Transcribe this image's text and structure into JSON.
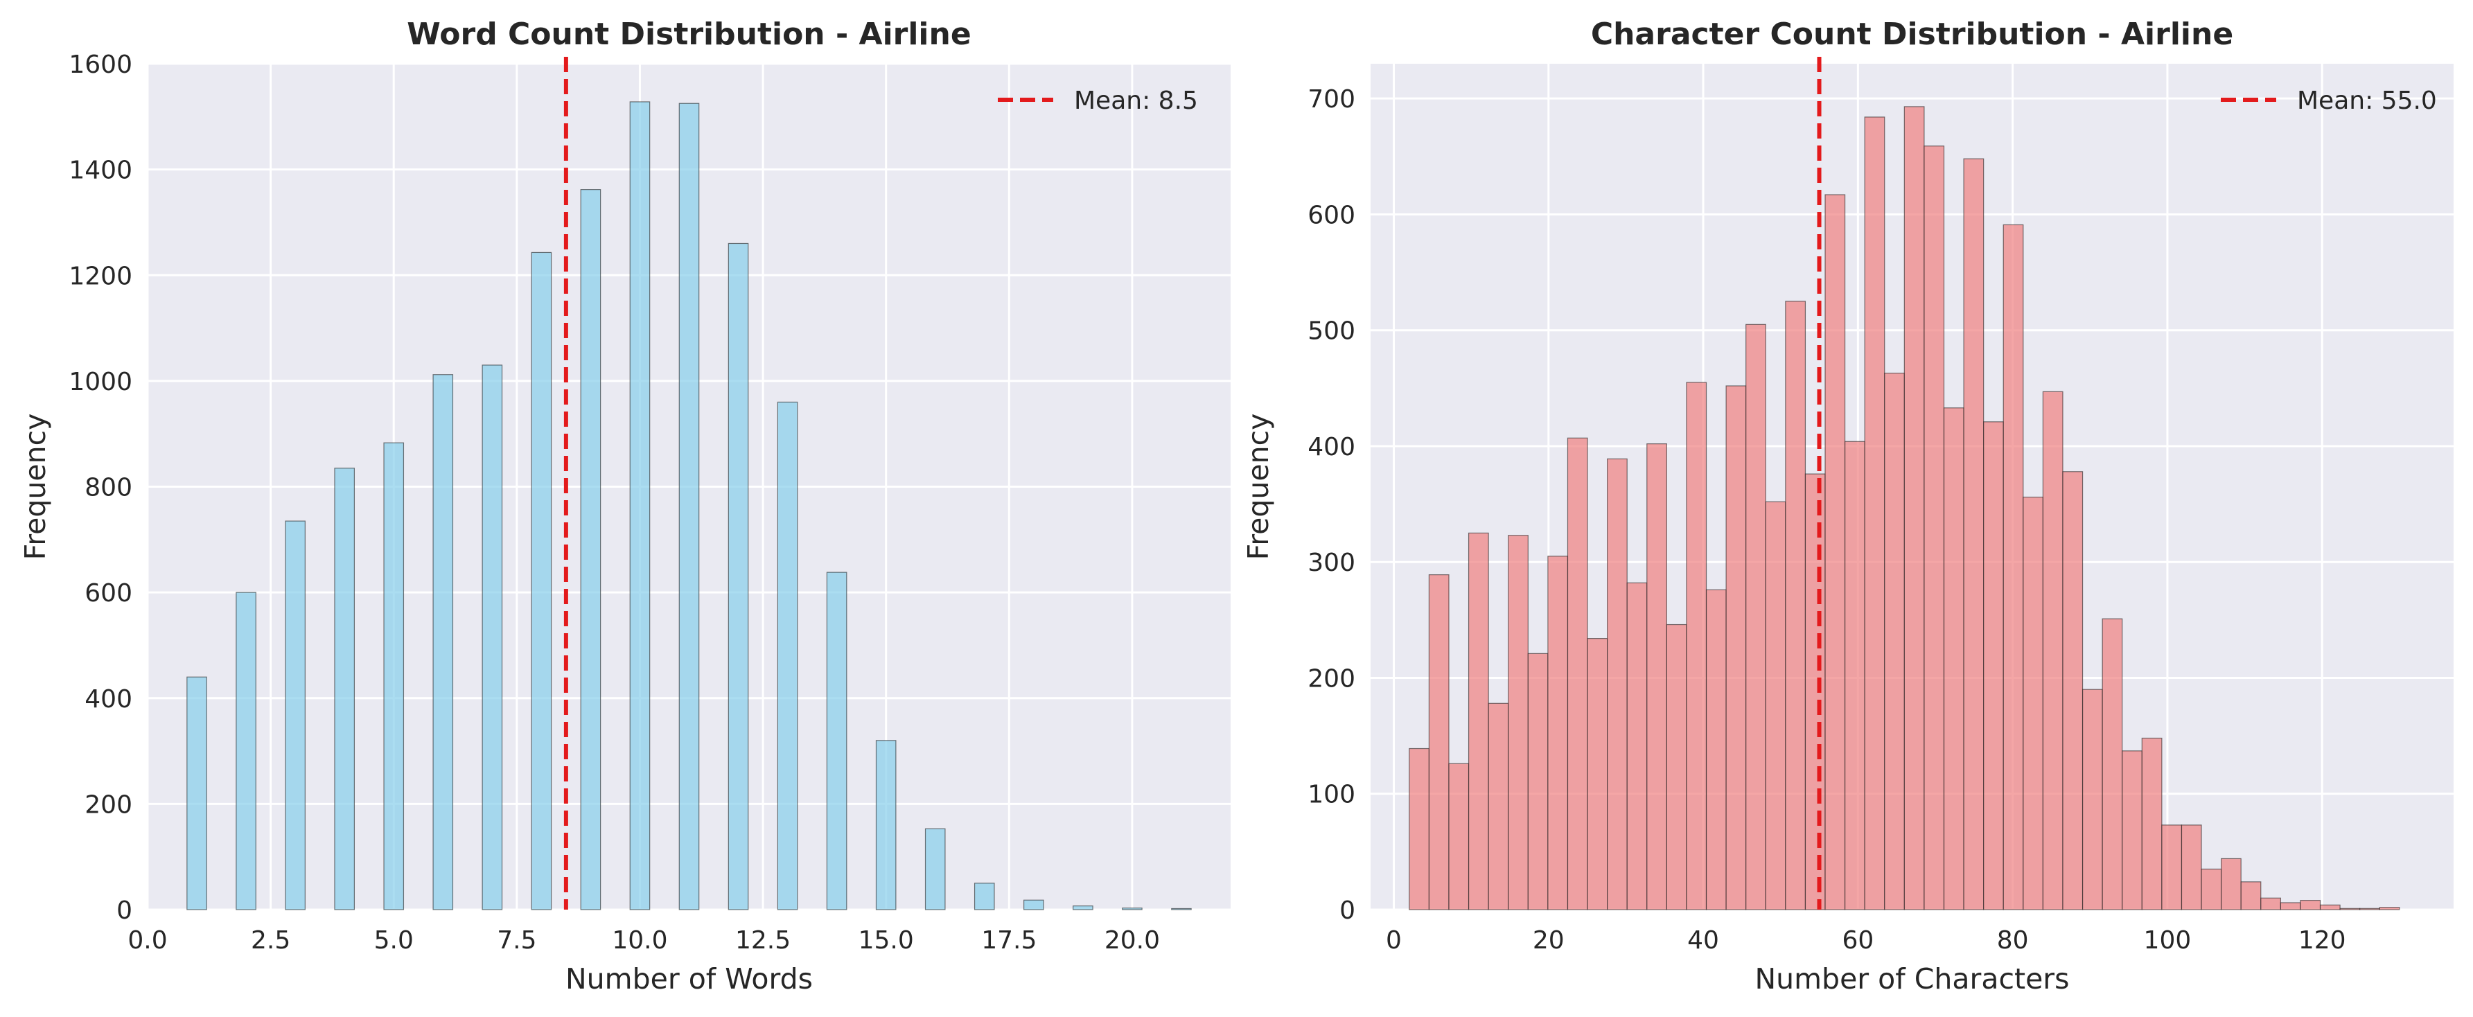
{
  "chart_data": [
    {
      "type": "bar",
      "title": "Word Count Distribution - Airline",
      "xlabel": "Number of Words",
      "ylabel": "Frequency",
      "xlim": [
        0,
        22
      ],
      "ylim": [
        0,
        1600
      ],
      "bar_color": "#87CEEB",
      "edge_color": "#1f1f1f",
      "bin_width": 0.4,
      "xticks": [
        0,
        2.5,
        5,
        7.5,
        10,
        12.5,
        15,
        17.5,
        20
      ],
      "xtick_labels": [
        "0.0",
        "2.5",
        "5.0",
        "7.5",
        "10.0",
        "12.5",
        "15.0",
        "17.5",
        "20.0"
      ],
      "yticks": [
        0,
        200,
        400,
        600,
        800,
        1000,
        1200,
        1400,
        1600
      ],
      "ytick_labels": [
        "0",
        "200",
        "400",
        "600",
        "800",
        "1000",
        "1200",
        "1400",
        "1600"
      ],
      "x": [
        1,
        2,
        3,
        4,
        5,
        6,
        7,
        8,
        9,
        10,
        11,
        12,
        13,
        14,
        15,
        16,
        17,
        18,
        19,
        20,
        21
      ],
      "values": [
        440,
        600,
        735,
        835,
        883,
        1012,
        1030,
        1243,
        1362,
        1528,
        1525,
        1260,
        960,
        638,
        320,
        153,
        50,
        18,
        7,
        3,
        2
      ],
      "mean": {
        "value": 8.5,
        "label": "Mean: 8.5",
        "color": "#e31a1c"
      },
      "grid": true,
      "legend_position": "top-right"
    },
    {
      "type": "bar",
      "title": "Character Count Distribution - Airline",
      "xlabel": "Number of Characters",
      "ylabel": "Frequency",
      "xlim": [
        -3,
        137
      ],
      "ylim": [
        0,
        730
      ],
      "bar_color": "#F08080",
      "edge_color": "#1f1f1f",
      "bin_start": 2,
      "bin_width": 2.56,
      "xticks": [
        0,
        20,
        40,
        60,
        80,
        100,
        120
      ],
      "xtick_labels": [
        "0",
        "20",
        "40",
        "60",
        "80",
        "100",
        "120"
      ],
      "yticks": [
        0,
        100,
        200,
        300,
        400,
        500,
        600,
        700
      ],
      "ytick_labels": [
        "0",
        "100",
        "200",
        "300",
        "400",
        "500",
        "600",
        "700"
      ],
      "values": [
        139,
        289,
        126,
        325,
        178,
        323,
        221,
        305,
        407,
        234,
        389,
        282,
        402,
        246,
        455,
        276,
        452,
        505,
        352,
        525,
        376,
        617,
        404,
        684,
        463,
        693,
        659,
        433,
        648,
        421,
        591,
        356,
        447,
        378,
        190,
        251,
        137,
        148,
        73,
        73,
        35,
        44,
        24,
        10,
        6,
        8,
        4,
        1,
        1,
        2
      ],
      "mean": {
        "value": 55.0,
        "label": "Mean: 55.0",
        "color": "#e31a1c"
      },
      "grid": true,
      "legend_position": "top-right"
    }
  ]
}
